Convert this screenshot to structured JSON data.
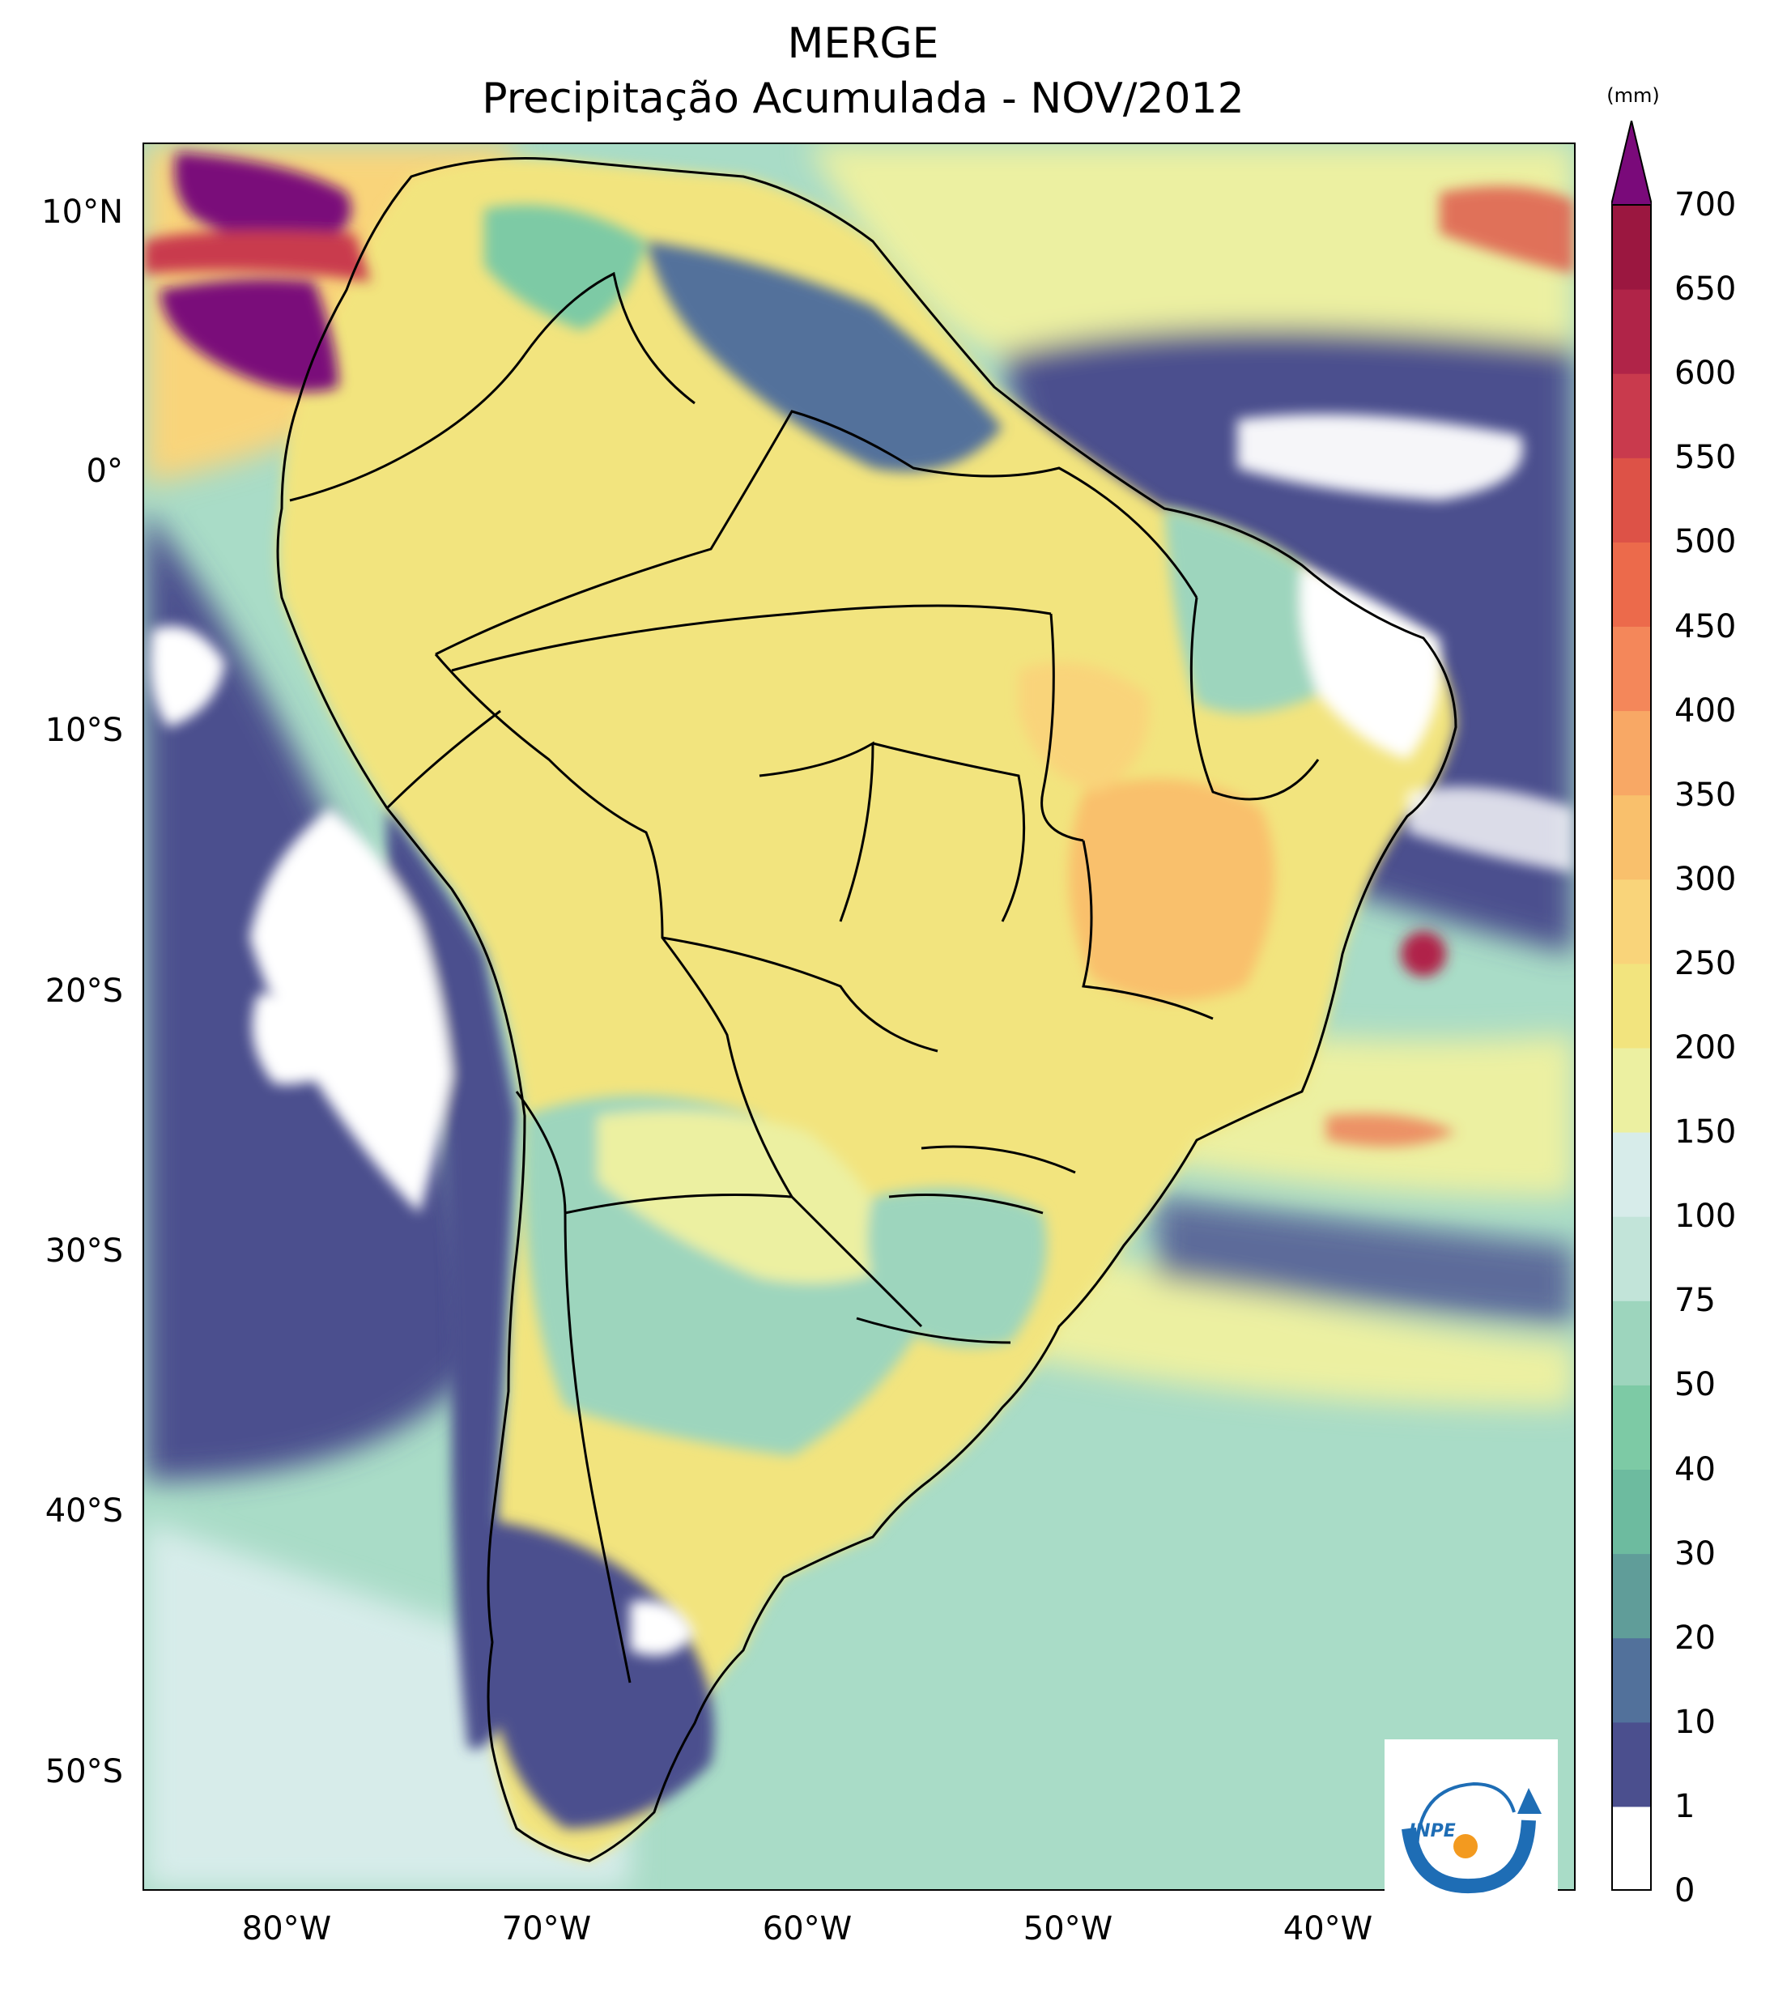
{
  "title": {
    "line1": "MERGE",
    "line2": "Precipitação Acumulada - NOV/2012"
  },
  "map": {
    "lon_range": [
      -85,
      -30
    ],
    "lat_range": [
      -56,
      12.5
    ],
    "lat_ticks": [
      "10°N",
      "0°",
      "10°S",
      "20°S",
      "30°S",
      "40°S",
      "50°S"
    ],
    "lon_ticks": [
      "80°W",
      "70°W",
      "60°W",
      "50°W",
      "40°W"
    ],
    "field": "accumulated precipitation",
    "regions": [
      {
        "area": "Caribbean coast / northern Colombia-Venezuela",
        "level": "700+",
        "color": "#7a0a7a"
      },
      {
        "area": "Amazon basin and central Brazil",
        "level": "150-250",
        "color": "#f2e079"
      },
      {
        "area": "Minas Gerais / Goiás",
        "level": "250-400",
        "color": "#f9c46b"
      },
      {
        "area": "Northeast Brazil coast",
        "level": "0-1",
        "color": "#ffffff"
      },
      {
        "area": "Atacama / Pacific coast",
        "level": "0-1",
        "color": "#ffffff"
      },
      {
        "area": "Patagonia interior",
        "level": "1-20",
        "color": "#4a5a96"
      },
      {
        "area": "Equatorial Atlantic",
        "level": "1-20",
        "color": "#4a5a96"
      }
    ]
  },
  "colorbar": {
    "unit": "(mm)",
    "levels": [
      "0",
      "1",
      "10",
      "20",
      "30",
      "40",
      "50",
      "75",
      "100",
      "150",
      "200",
      "250",
      "300",
      "350",
      "400",
      "450",
      "500",
      "550",
      "600",
      "650",
      "700"
    ],
    "colors": [
      "#ffffff",
      "#4b4f8e",
      "#52719b",
      "#609d99",
      "#6dbb9f",
      "#7dcaa5",
      "#9dd5bd",
      "#c2e4d9",
      "#d7ecea",
      "#ecf0a1",
      "#f2e47e",
      "#f9d47a",
      "#f9c06c",
      "#f8a865",
      "#f4875a",
      "#ec6a4b",
      "#dd5247",
      "#c93a4d",
      "#b02448",
      "#9b1740",
      "#7a0a7a"
    ],
    "extend": "max",
    "extend_color": "#7a0a7a"
  },
  "logo": {
    "text": "INPE",
    "colors": {
      "arc": "#1e6db5",
      "dot": "#f39a1f"
    }
  }
}
